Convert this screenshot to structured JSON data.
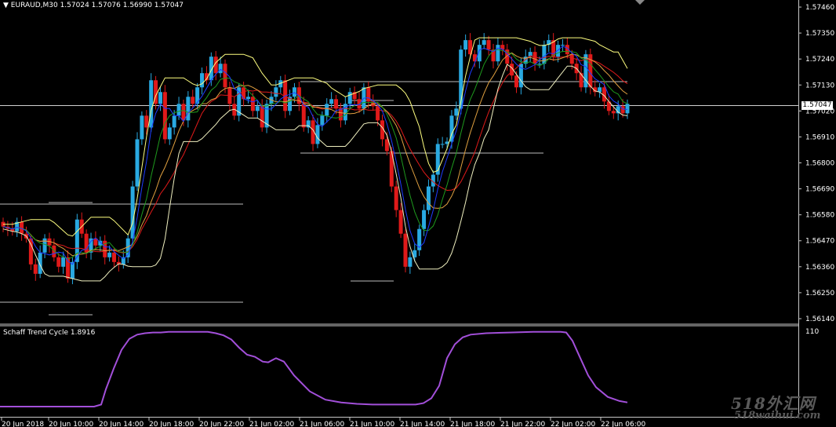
{
  "header": {
    "symbol_line": "EURAUD,M30  1.57024 1.57076 1.56990 1.57047"
  },
  "current_price": "1.57047",
  "subwindow": {
    "title": "Schaff Trend Cycle 1.8916",
    "max_label": "110"
  },
  "watermark": {
    "top": "518外汇网",
    "bottom": "518waihui.com"
  },
  "colors": {
    "bull": "#29a9e1",
    "bear": "#e01a1a",
    "ma_fast": "#1e3cff",
    "ma_mid": "#1e9a1e",
    "ma_slow": "#e01a1a",
    "band": "#ffff80",
    "stc": "#a24fd9",
    "level": "#bbbbbb"
  },
  "chart_data": [
    {
      "type": "candlestick",
      "title": "EURAUD,M30",
      "y_ticks": [
        "1.57460",
        "1.57350",
        "1.57240",
        "1.57130",
        "1.57020",
        "1.56910",
        "1.56800",
        "1.56690",
        "1.56580",
        "1.56470",
        "1.56360",
        "1.56250",
        "1.56140"
      ],
      "ylim": [
        1.5612,
        1.5749
      ],
      "x_ticks": [
        "20 Jun 2018",
        "20 Jun 10:00",
        "20 Jun 14:00",
        "20 Jun 18:00",
        "20 Jun 22:00",
        "21 Jun 02:00",
        "21 Jun 06:00",
        "21 Jun 10:00",
        "21 Jun 14:00",
        "21 Jun 18:00",
        "21 Jun 22:00",
        "22 Jun 02:00",
        "22 Jun 06:00"
      ],
      "closes": [
        1.5653,
        1.5652,
        1.5651,
        1.5655,
        1.565,
        1.5648,
        1.5637,
        1.5633,
        1.5642,
        1.5648,
        1.5645,
        1.564,
        1.5636,
        1.564,
        1.5631,
        1.5638,
        1.5656,
        1.565,
        1.5642,
        1.5648,
        1.5645,
        1.5647,
        1.564,
        1.5642,
        1.5638,
        1.5637,
        1.564,
        1.5648,
        1.567,
        1.569,
        1.57,
        1.5695,
        1.5715,
        1.5705,
        1.571,
        1.569,
        1.5695,
        1.57,
        1.5705,
        1.5698,
        1.5708,
        1.5705,
        1.5712,
        1.5718,
        1.5715,
        1.5725,
        1.5718,
        1.5722,
        1.5712,
        1.5705,
        1.57,
        1.5712,
        1.5707,
        1.5708,
        1.5702,
        1.5704,
        1.5695,
        1.5705,
        1.5708,
        1.5712,
        1.5715,
        1.5702,
        1.5708,
        1.5712,
        1.5705,
        1.5695,
        1.5698,
        1.5688,
        1.5696,
        1.57,
        1.5705,
        1.5707,
        1.5703,
        1.5698,
        1.5705,
        1.571,
        1.5707,
        1.5703,
        1.5712,
        1.5706,
        1.5704,
        1.5698,
        1.569,
        1.5685,
        1.567,
        1.566,
        1.565,
        1.5636,
        1.564,
        1.5643,
        1.5652,
        1.566,
        1.567,
        1.5675,
        1.5688,
        1.5688,
        1.5689,
        1.57,
        1.5703,
        1.5728,
        1.5732,
        1.5726,
        1.5723,
        1.573,
        1.5732,
        1.5728,
        1.5723,
        1.573,
        1.5728,
        1.5722,
        1.5717,
        1.5712,
        1.5722,
        1.5725,
        1.5727,
        1.5722,
        1.5722,
        1.573,
        1.5732,
        1.5725,
        1.573,
        1.573,
        1.5726,
        1.5722,
        1.5718,
        1.5712,
        1.5726,
        1.5712,
        1.571,
        1.5712,
        1.5706,
        1.5702,
        1.5701,
        1.5704,
        1.5701,
        1.5705
      ]
    },
    {
      "type": "line",
      "title": "Schaff Trend Cycle 1.8916",
      "ylim": [
        0,
        110
      ],
      "x": [
        0,
        20,
        40,
        60,
        80,
        100,
        120,
        129,
        135,
        145,
        155,
        165,
        175,
        185,
        195,
        205,
        215,
        225,
        235,
        245,
        255,
        265,
        275,
        285,
        295,
        305,
        315,
        325,
        335,
        342,
        347,
        352,
        362,
        375,
        395,
        415,
        435,
        455,
        475,
        495,
        515,
        530,
        540,
        550,
        560,
        570,
        580,
        590,
        600,
        620,
        650,
        680,
        700,
        715,
        722,
        730,
        740,
        750,
        760,
        775,
        790,
        800
      ],
      "values": [
        0,
        0,
        0,
        0,
        0,
        0,
        0,
        3,
        25,
        55,
        82,
        98,
        104,
        106,
        107,
        107,
        108,
        108,
        108,
        108,
        108,
        108,
        106,
        103,
        97,
        85,
        75,
        72,
        65,
        64,
        67,
        70,
        65,
        45,
        22,
        10,
        6,
        4,
        3,
        3,
        3,
        3,
        5,
        12,
        30,
        70,
        90,
        100,
        104,
        106,
        107,
        108,
        108,
        108,
        107,
        95,
        70,
        45,
        28,
        14,
        8,
        6
      ]
    }
  ]
}
